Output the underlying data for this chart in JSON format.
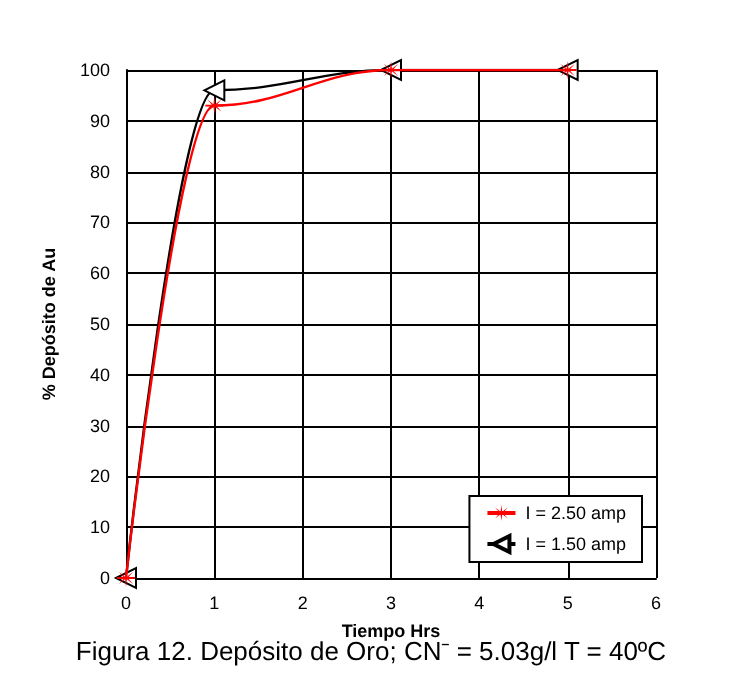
{
  "chart_data": {
    "type": "line",
    "xlabel": "Tiempo Hrs",
    "ylabel": "% Depósito de Au",
    "x": [
      0,
      1,
      3,
      5
    ],
    "series": [
      {
        "name": "I = 2.50 amp",
        "color": "#ff0000",
        "marker": "star",
        "values": [
          0,
          93,
          100,
          100
        ]
      },
      {
        "name": "I = 1.50 amp",
        "color": "#000000",
        "marker": "triangle",
        "values": [
          0,
          96,
          100,
          100
        ]
      }
    ],
    "xlim": [
      0,
      6
    ],
    "xticks": [
      0,
      1,
      2,
      3,
      4,
      5,
      6
    ],
    "ylim": [
      0,
      100
    ],
    "yticks": [
      0,
      10,
      20,
      30,
      40,
      50,
      60,
      70,
      80,
      90,
      100
    ],
    "grid": true,
    "legend": "bottom right",
    "line_style": "solid",
    "annotations": [
      "Figura 12. Depósito de Oro; CN⁻ = 5.03g/l T = 40ºC"
    ]
  }
}
